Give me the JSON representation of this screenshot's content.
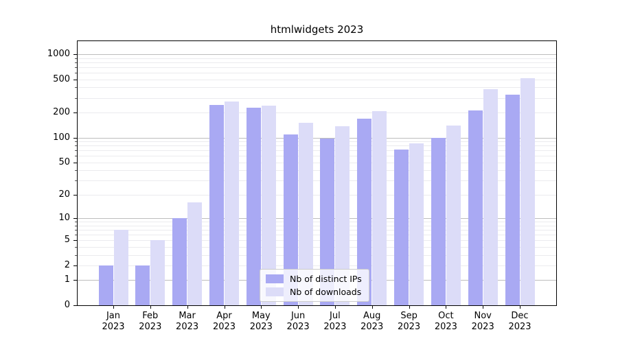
{
  "title": "htmlwidgets 2023",
  "colors": {
    "series": [
      "#a9a9f3",
      "#dcdcf8"
    ],
    "grid_major": "#bdbdbd",
    "grid_minor": "#ebebee",
    "axis": "#000000"
  },
  "legend": {
    "items": [
      {
        "label": "Nb of distinct IPs"
      },
      {
        "label": "Nb of downloads"
      }
    ]
  },
  "chart_data": {
    "type": "bar",
    "title": "htmlwidgets 2023",
    "categories": [
      "Jan",
      "Feb",
      "Mar",
      "Apr",
      "May",
      "Jun",
      "Jul",
      "Aug",
      "Sep",
      "Oct",
      "Nov",
      "Dec"
    ],
    "category_year": "2023",
    "series": [
      {
        "name": "Nb of distinct IPs",
        "values": [
          2,
          2,
          10,
          248,
          228,
          110,
          98,
          170,
          72,
          100,
          212,
          325
        ]
      },
      {
        "name": "Nb of downloads",
        "values": [
          7,
          5,
          16,
          272,
          242,
          150,
          137,
          206,
          85,
          140,
          384,
          520
        ]
      }
    ],
    "yscale": "log1p",
    "yticks": [
      0,
      1,
      2,
      5,
      10,
      20,
      50,
      100,
      200,
      500,
      1000
    ],
    "ylim": [
      0,
      1430
    ],
    "grid": "both",
    "legend_position": "lower center"
  }
}
